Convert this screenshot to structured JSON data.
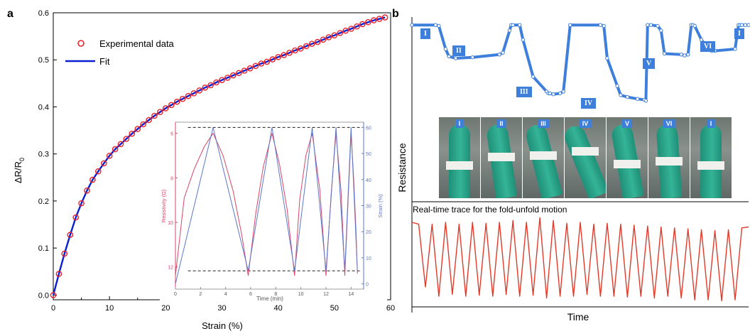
{
  "panels": {
    "a_label": "a",
    "b_label": "b"
  },
  "chart_data": [
    {
      "id": "main",
      "type": "scatter",
      "xlabel": "Strain (%)",
      "ylabel": "ΔR/R0",
      "xlim": [
        0,
        60
      ],
      "ylim": [
        -0.01,
        0.6
      ],
      "xticks": [
        "0",
        "10",
        "20",
        "30",
        "40",
        "50",
        "60"
      ],
      "yticks": [
        "0.0",
        "0.1",
        "0.2",
        "0.3",
        "0.4",
        "0.5",
        "0.6"
      ],
      "legend_position": "top-left",
      "series": [
        {
          "name": "Experimental data",
          "marker": "circle",
          "color": "#e8232a",
          "x": [
            0,
            1,
            2,
            3,
            4,
            5,
            6,
            7,
            8,
            9,
            10,
            11,
            12,
            13,
            14,
            15,
            16,
            17,
            18,
            19,
            20,
            21,
            22,
            23,
            24,
            25,
            26,
            27,
            28,
            29,
            30,
            31,
            32,
            33,
            34,
            35,
            36,
            37,
            38,
            39,
            40,
            41,
            42,
            43,
            44,
            45,
            46,
            47,
            48,
            49,
            50,
            51,
            52,
            53,
            54,
            55,
            56,
            57,
            58,
            59
          ],
          "y": [
            0.0,
            0.045,
            0.088,
            0.128,
            0.165,
            0.195,
            0.222,
            0.245,
            0.263,
            0.28,
            0.296,
            0.31,
            0.321,
            0.332,
            0.343,
            0.353,
            0.363,
            0.372,
            0.381,
            0.389,
            0.397,
            0.404,
            0.411,
            0.417,
            0.423,
            0.429,
            0.435,
            0.441,
            0.446,
            0.452,
            0.457,
            0.462,
            0.467,
            0.472,
            0.477,
            0.482,
            0.487,
            0.492,
            0.496,
            0.501,
            0.506,
            0.51,
            0.515,
            0.52,
            0.524,
            0.529,
            0.534,
            0.538,
            0.543,
            0.548,
            0.552,
            0.557,
            0.562,
            0.566,
            0.571,
            0.576,
            0.58,
            0.584,
            0.587,
            0.59
          ]
        },
        {
          "name": "Fit",
          "marker": "line",
          "color": "#0a1fd1",
          "x": [
            0,
            1,
            2,
            3,
            4,
            5,
            6,
            7,
            8,
            9,
            10,
            11,
            12,
            13,
            14,
            15,
            16,
            17,
            18,
            19,
            20,
            21,
            22,
            23,
            24,
            25,
            26,
            27,
            28,
            29,
            30,
            31,
            32,
            33,
            34,
            35,
            36,
            37,
            38,
            39,
            40,
            41,
            42,
            43,
            44,
            45,
            46,
            47,
            48,
            49,
            50,
            51,
            52,
            53,
            54,
            55,
            56,
            57,
            58,
            59
          ],
          "y": [
            0.0,
            0.045,
            0.088,
            0.128,
            0.165,
            0.195,
            0.222,
            0.245,
            0.263,
            0.28,
            0.296,
            0.31,
            0.321,
            0.332,
            0.343,
            0.353,
            0.363,
            0.372,
            0.381,
            0.389,
            0.397,
            0.404,
            0.411,
            0.417,
            0.423,
            0.429,
            0.435,
            0.441,
            0.446,
            0.452,
            0.457,
            0.462,
            0.467,
            0.472,
            0.477,
            0.482,
            0.487,
            0.492,
            0.496,
            0.501,
            0.506,
            0.51,
            0.515,
            0.52,
            0.524,
            0.529,
            0.534,
            0.538,
            0.543,
            0.548,
            0.552,
            0.557,
            0.562,
            0.566,
            0.571,
            0.576,
            0.58,
            0.584,
            0.587,
            0.59
          ]
        }
      ]
    },
    {
      "id": "inset",
      "type": "line",
      "xlabel": "Time (min)",
      "ylabel_left": "Resistivity (Ω)",
      "ylabel_right": "Strain (%)",
      "xlim": [
        0,
        15
      ],
      "ylim_left": [
        5.5,
        13
      ],
      "ylim_right": [
        -2,
        62
      ],
      "left_reversed": true,
      "xticks": [
        "0",
        "2",
        "4",
        "6",
        "8",
        "10",
        "12",
        "14"
      ],
      "yticks_left": [
        "6",
        "8",
        "10",
        "12"
      ],
      "yticks_right": [
        "0",
        "10",
        "20",
        "30",
        "40",
        "50",
        "60"
      ],
      "ref_lines_right": [
        60,
        5
      ],
      "series": [
        {
          "name": "Resistivity",
          "color": "#d9446a",
          "x": [
            0,
            0.7,
            1.5,
            2.3,
            3.0,
            3.8,
            4.6,
            5.3,
            5.8,
            6.4,
            7.0,
            7.7,
            8.3,
            8.9,
            9.5,
            9.9,
            10.4,
            10.9,
            11.5,
            12.0,
            12.4,
            12.8,
            13.2,
            13.5,
            13.8,
            14.0,
            14.2,
            14.4,
            14.5
          ],
          "y": [
            12.4,
            8.9,
            7.6,
            6.6,
            6.0,
            7.0,
            8.6,
            10.6,
            12.4,
            9.6,
            7.5,
            6.0,
            7.4,
            9.4,
            12.4,
            9.0,
            7.0,
            6.0,
            8.5,
            12.4,
            8.8,
            6.0,
            8.6,
            12.4,
            8.5,
            6.0,
            8.0,
            10.5,
            12.3
          ]
        },
        {
          "name": "Strain",
          "color": "#5b77c9",
          "x": [
            0,
            3.0,
            5.8,
            7.7,
            9.5,
            10.9,
            12.0,
            12.8,
            13.5,
            14.0,
            14.5
          ],
          "y": [
            0,
            60,
            5,
            60,
            5,
            60,
            5,
            60,
            5,
            60,
            5
          ]
        }
      ]
    },
    {
      "id": "panel_b_top",
      "type": "line",
      "description_ylabel": "Resistance",
      "ylabel": "Resistance",
      "xlim": [
        0,
        100
      ],
      "ylim": [
        0,
        100
      ],
      "stage_labels": [
        "I",
        "II",
        "III",
        "IV",
        "V",
        "VI",
        "I"
      ],
      "series": [
        {
          "name": "Resistance",
          "color": "#3e7fdc",
          "x": [
            0,
            7,
            8,
            10,
            11,
            13,
            18,
            26,
            27,
            29,
            29.5,
            30,
            32,
            33,
            36,
            40,
            40.5,
            41,
            42,
            44,
            45,
            47,
            56,
            57,
            58,
            61,
            62,
            64,
            67,
            69,
            69.5,
            70,
            71,
            73,
            74,
            75,
            80,
            81,
            82,
            83,
            83.5,
            84,
            86,
            88,
            89,
            90,
            96,
            97,
            97.5,
            98,
            99,
            100
          ],
          "y": [
            96,
            96,
            95,
            70,
            62,
            60,
            61,
            64,
            66,
            90,
            96,
            96,
            96,
            80,
            40,
            24,
            22,
            22,
            21,
            22,
            24,
            96,
            96,
            95,
            60,
            30,
            20,
            18,
            16,
            15,
            14,
            96,
            96,
            95,
            90,
            65,
            64,
            63,
            64,
            96,
            96,
            95,
            80,
            70,
            68,
            68,
            70,
            96,
            96,
            96,
            96,
            96
          ]
        }
      ]
    },
    {
      "id": "panel_b_bottom",
      "type": "line",
      "title": "Real-time trace for the fold-unfold motion",
      "xlabel": "Time",
      "xlim": [
        0,
        100
      ],
      "ylim": [
        0,
        100
      ],
      "series": [
        {
          "name": "Trace",
          "color": "#e03b2a",
          "x": [
            0,
            2,
            4,
            6,
            8,
            10,
            12,
            14,
            16,
            18,
            20,
            22,
            24,
            26,
            28,
            30,
            32,
            34,
            36,
            38,
            40,
            42,
            44,
            46,
            48,
            50,
            52,
            54,
            56,
            58,
            60,
            62,
            64,
            66,
            68,
            70,
            72,
            74,
            76,
            78,
            80,
            82,
            84,
            86,
            88,
            90,
            92,
            94,
            96,
            98,
            100
          ],
          "y": [
            90,
            88,
            20,
            88,
            10,
            90,
            12,
            88,
            10,
            90,
            11,
            89,
            10,
            90,
            12,
            92,
            10,
            90,
            11,
            95,
            8,
            92,
            10,
            89,
            10,
            90,
            12,
            88,
            10,
            89,
            10,
            88,
            9,
            87,
            10,
            86,
            8,
            85,
            10,
            84,
            8,
            83,
            6,
            82,
            6,
            81,
            5,
            82,
            6,
            84,
            85
          ]
        }
      ]
    }
  ],
  "photos": {
    "labels": [
      "I",
      "II",
      "III",
      "IV",
      "V",
      "VI",
      "I"
    ]
  }
}
